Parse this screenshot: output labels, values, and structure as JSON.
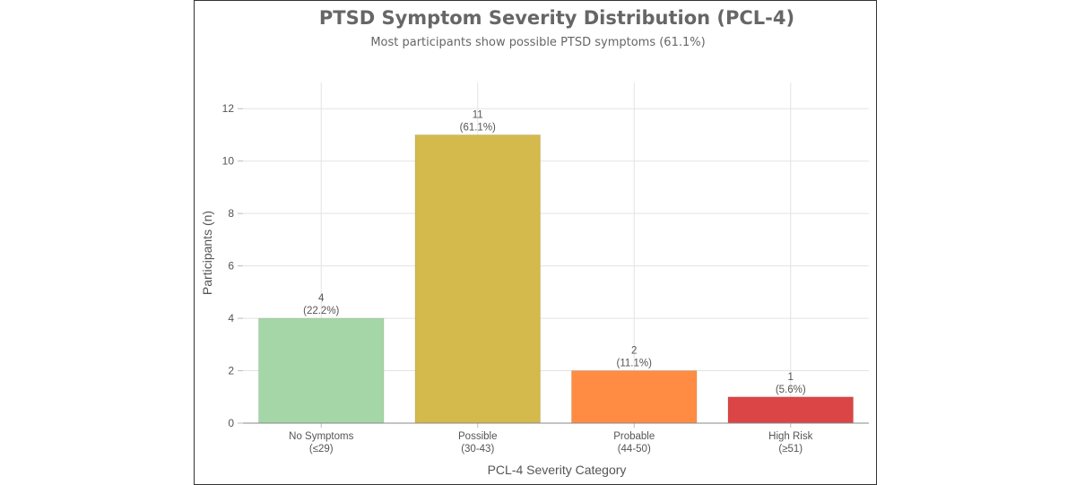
{
  "chart_data": {
    "type": "bar",
    "title": "PTSD Symptom Severity Distribution (PCL-4)",
    "subtitle": "Most participants show possible PTSD symptoms (61.1%)",
    "xlabel": "PCL-4 Severity Category",
    "ylabel": "Participants (n)",
    "ylim": [
      0,
      13
    ],
    "yticks": [
      0,
      2,
      4,
      6,
      8,
      10,
      12
    ],
    "grid": true,
    "categories": [
      {
        "line1": "No Symptoms",
        "line2": "(≤29)"
      },
      {
        "line1": "Possible",
        "line2": "(30-43)"
      },
      {
        "line1": "Probable",
        "line2": "(44-50)"
      },
      {
        "line1": "High Risk",
        "line2": "(≥51)"
      }
    ],
    "values": [
      4,
      11,
      2,
      1
    ],
    "value_labels": [
      "4",
      "11",
      "2",
      "1"
    ],
    "percent_labels": [
      "(22.2%)",
      "(61.1%)",
      "(11.1%)",
      "(5.6%)"
    ],
    "colors": [
      "#a5d6a7",
      "#d4b94c",
      "#ff8c42",
      "#db4545"
    ]
  }
}
